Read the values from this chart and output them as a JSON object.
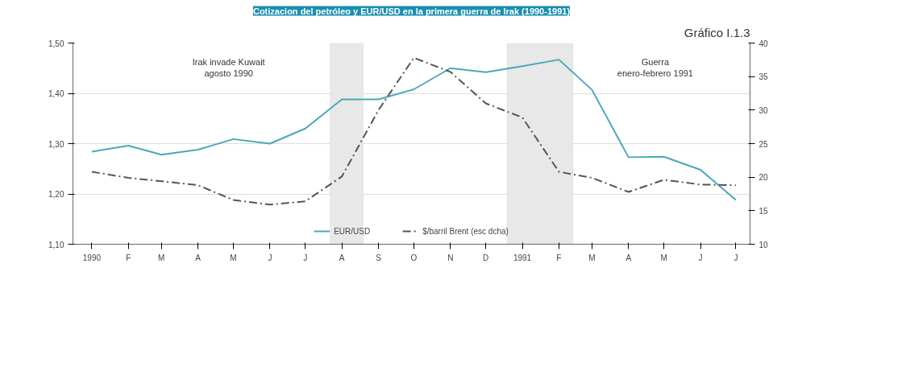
{
  "chart_data": {
    "type": "line",
    "title": "Cotizacion del petróleo y EUR/USD en la primera guerra de Irak (1990-1991)",
    "x": [
      "1990-01",
      "1990-02",
      "1990-03",
      "1990-04",
      "1990-05",
      "1990-06",
      "1990-07",
      "1990-08",
      "1990-09",
      "1990-10",
      "1990-11",
      "1990-12",
      "1991-01",
      "1991-02",
      "1991-03",
      "1991-04",
      "1991-05",
      "1991-06",
      "1991-07"
    ],
    "xlim": [
      "1989-12-16",
      "1991-07-13"
    ],
    "xticks": [
      {
        "value": "1990-01",
        "label": "1990"
      },
      {
        "value": "1990-02",
        "label": "F"
      },
      {
        "value": "1990-03",
        "label": "M"
      },
      {
        "value": "1990-04",
        "label": "A"
      },
      {
        "value": "1990-05",
        "label": "M"
      },
      {
        "value": "1990-06",
        "label": "J"
      },
      {
        "value": "1990-07",
        "label": "J"
      },
      {
        "value": "1990-08",
        "label": "A"
      },
      {
        "value": "1990-09",
        "label": "S"
      },
      {
        "value": "1990-10",
        "label": "O"
      },
      {
        "value": "1990-11",
        "label": "N"
      },
      {
        "value": "1990-12",
        "label": "D"
      },
      {
        "value": "1991-01",
        "label": "1991"
      },
      {
        "value": "1991-02",
        "label": "F"
      },
      {
        "value": "1991-03",
        "label": "M"
      },
      {
        "value": "1991-04",
        "label": "A"
      },
      {
        "value": "1991-05",
        "label": "M"
      },
      {
        "value": "1991-06",
        "label": "J"
      },
      {
        "value": "1991-07",
        "label": "J"
      }
    ],
    "ylim": [
      1.1,
      1.5
    ],
    "yticks": [
      {
        "value": 1.1,
        "label": "1,10"
      },
      {
        "value": 1.2,
        "label": "1,20"
      },
      {
        "value": 1.3,
        "label": "1,30"
      },
      {
        "value": 1.4,
        "label": "1,40"
      },
      {
        "value": 1.5,
        "label": "1,50"
      }
    ],
    "y2lim": [
      10,
      40
    ],
    "y2ticks": [
      10,
      15,
      20,
      25,
      30,
      35,
      40
    ],
    "series": [
      {
        "name": "EUR/USD",
        "color": "#4aa8b8",
        "line_style": "solid",
        "values": [
          1.284,
          1.296,
          1.278,
          1.288,
          1.309,
          1.3,
          1.33,
          1.388,
          1.388,
          1.408,
          1.45,
          1.442,
          1.454,
          1.467,
          1.407,
          1.273,
          1.274,
          1.248,
          1.188
        ]
      },
      {
        "name": "$/barril Brent (esc dcha)",
        "color": "#555555",
        "line_style": "dashdot",
        "axis": "y2",
        "values": [
          20.8,
          19.9,
          19.4,
          18.8,
          16.6,
          15.9,
          16.4,
          20.1,
          30.0,
          37.8,
          35.7,
          31.0,
          28.9,
          20.8,
          19.9,
          17.8,
          19.6,
          18.9,
          18.8
        ]
      }
    ],
    "bands": [
      {
        "axis": "x",
        "from": "1990-07-22",
        "to": "1990-08-19",
        "color": "#e8e8e8"
      },
      {
        "axis": "x",
        "from": "1990-12-19",
        "to": "1991-02-13",
        "color": "#e8e8e8"
      }
    ],
    "annotations": [
      "Irak invade Kuwait\nagosto 1990",
      "Guerra\nenero-febrero 1991",
      "Gráfico I.1.3"
    ],
    "grid": "y",
    "legend": "bottom",
    "marker": "none"
  }
}
